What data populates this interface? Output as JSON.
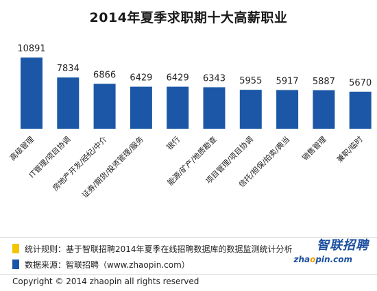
{
  "title": "2014年夏季求职期十大高薪职业",
  "chart_data": {
    "type": "bar",
    "title": "2014年夏季求职期十大高薪职业",
    "categories": [
      "高级管理",
      "IT管理/项目协调",
      "房地产开发/经纪/中介",
      "证券/期货/投资管理/服务",
      "银行",
      "能源/矿产/地质勘查",
      "项目管理/项目协调",
      "信托/担保/拍卖/典当",
      "销售管理",
      "兼职/临时"
    ],
    "values": [
      10891,
      7834,
      6866,
      6429,
      6429,
      6343,
      5955,
      5917,
      5887,
      5670
    ],
    "value_labels": [
      "10891",
      "7834",
      "6866",
      "6429",
      "6429",
      "6343",
      "5955",
      "5917",
      "5887",
      "5670"
    ],
    "xlabel": "",
    "ylabel": "",
    "ylim": [
      0,
      12000
    ],
    "grid": false,
    "legend": "none",
    "bar_color": "#1b57a6"
  },
  "legend": [
    {
      "color": "#f2c500",
      "text": "统计规则：基于智联招聘2014年夏季在线招聘数据库的数据监测统计分析"
    },
    {
      "color": "#1b57a6",
      "text": "数据来源：智联招聘（www.zhaopin.com）"
    }
  ],
  "logo": {
    "brand": "智联招聘",
    "domain_prefix": "zha",
    "domain_dot": "o",
    "domain_suffix": "pin.com"
  },
  "copyright": "Copyright © 2014 zhaopin all rights reserved"
}
